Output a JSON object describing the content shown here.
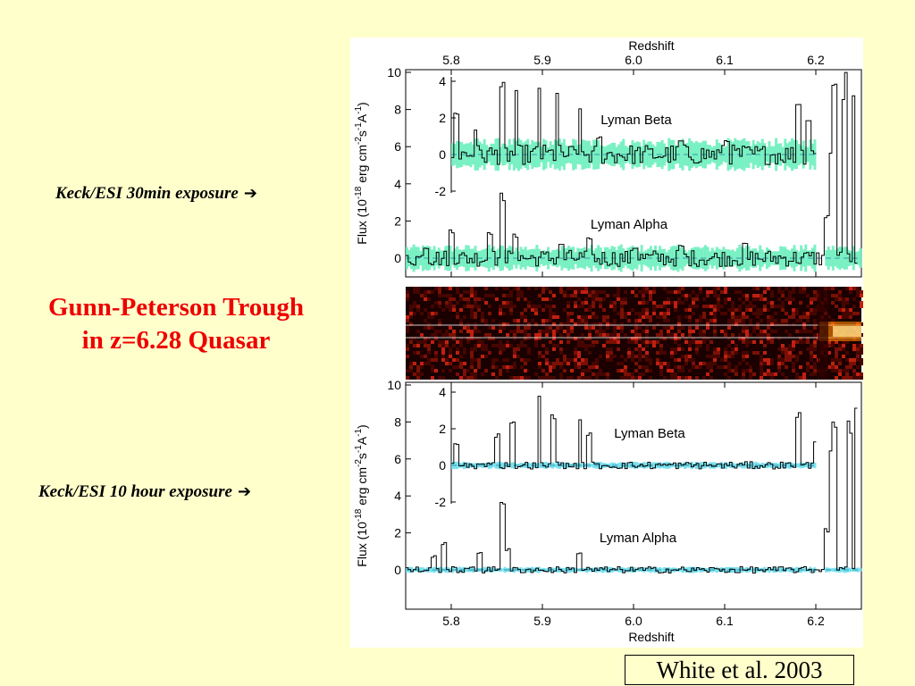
{
  "annotations": {
    "top_label": "Keck/ESI 30min exposure",
    "bottom_label": "Keck/ESI 10 hour exposure",
    "arrow": "➔",
    "title_line1": "Gunn-Peterson Trough",
    "title_line2": "in z=6.28 Quasar",
    "citation": "White et al. 2003"
  },
  "chart_data": [
    {
      "type": "line",
      "panel": "top",
      "title": "",
      "xlabel": "Redshift",
      "ylabel": "Flux (10^-18 erg cm^-2 s^-1 A^-1)",
      "xlim": [
        5.75,
        6.25
      ],
      "ylim": [
        -1,
        10
      ],
      "xticks": [
        5.8,
        5.9,
        6.0,
        6.1,
        6.2
      ],
      "yticks": [
        0,
        2,
        4,
        6,
        8,
        10
      ],
      "inset": {
        "label": "Lyman Beta",
        "yticks": [
          -2,
          0,
          2,
          4
        ],
        "xlim": [
          5.8,
          6.2
        ]
      },
      "series_labels": [
        "Lyman Beta",
        "Lyman Alpha"
      ],
      "noise_color": "#66eebb",
      "lyman_alpha_spikes": [
        [
          5.77,
          0.6
        ],
        [
          5.8,
          1.6
        ],
        [
          5.84,
          1.5
        ],
        [
          5.855,
          3.6
        ],
        [
          5.87,
          1.3
        ],
        [
          5.92,
          0.8
        ],
        [
          5.95,
          1.1
        ],
        [
          6.0,
          0.6
        ],
        [
          6.05,
          0.7
        ],
        [
          6.12,
          0.8
        ],
        [
          6.21,
          2.5
        ],
        [
          6.215,
          6.0
        ],
        [
          6.22,
          9.5
        ],
        [
          6.23,
          10.0
        ],
        [
          6.24,
          10.0
        ]
      ],
      "lyman_beta_spikes": [
        [
          5.805,
          2.5
        ],
        [
          5.825,
          1.5
        ],
        [
          5.855,
          4.0
        ],
        [
          5.87,
          3.5
        ],
        [
          5.895,
          4.0
        ],
        [
          5.915,
          3.5
        ],
        [
          5.94,
          2.5
        ],
        [
          5.96,
          1.0
        ],
        [
          6.05,
          0.8
        ],
        [
          6.1,
          0.8
        ],
        [
          6.18,
          3.0
        ],
        [
          6.19,
          2.0
        ]
      ]
    },
    {
      "type": "heatmap",
      "panel": "middle",
      "description_colors": [
        "#200000",
        "#aa2200",
        "#ffcc66"
      ]
    },
    {
      "type": "line",
      "panel": "bottom",
      "title": "",
      "xlabel": "Redshift",
      "ylabel": "Flux (10^-18 erg cm^-2 s^-1 A^-1)",
      "xlim": [
        5.75,
        6.25
      ],
      "ylim": [
        -1,
        10
      ],
      "xticks": [
        5.8,
        5.9,
        6.0,
        6.1,
        6.2
      ],
      "yticks": [
        0,
        2,
        4,
        6,
        8,
        10
      ],
      "inset": {
        "label": "Lyman Beta",
        "yticks": [
          -2,
          0,
          2,
          4
        ],
        "xlim": [
          5.8,
          6.2
        ]
      },
      "series_labels": [
        "Lyman Beta",
        "Lyman Alpha"
      ],
      "noise_color": "#66ddee",
      "lyman_alpha_spikes": [
        [
          5.78,
          0.8
        ],
        [
          5.79,
          1.6
        ],
        [
          5.83,
          1.0
        ],
        [
          5.855,
          4.1
        ],
        [
          5.86,
          1.2
        ],
        [
          5.94,
          1.0
        ],
        [
          6.21,
          2.3
        ],
        [
          6.215,
          6.5
        ],
        [
          6.22,
          9.0
        ],
        [
          6.235,
          8.5
        ],
        [
          6.245,
          10.0
        ]
      ],
      "lyman_beta_spikes": [
        [
          5.805,
          1.2
        ],
        [
          5.85,
          1.8
        ],
        [
          5.865,
          2.4
        ],
        [
          5.895,
          4.0
        ],
        [
          5.91,
          3.0
        ],
        [
          5.94,
          2.5
        ],
        [
          5.95,
          1.8
        ],
        [
          6.18,
          3.0
        ],
        [
          6.2,
          1.5
        ]
      ]
    }
  ],
  "axis_texts": {
    "top_xlabel": "Redshift",
    "bottom_xlabel": "Redshift",
    "tick_labels": [
      "5.8",
      "5.9",
      "6.0",
      "6.1",
      "6.2"
    ],
    "y_tick_labels": [
      "0",
      "2",
      "4",
      "6",
      "8",
      "10"
    ],
    "inset_tick_labels": [
      "-2",
      "0",
      "2",
      "4"
    ],
    "ylabel_main": "Flux (10",
    "ylabel_exp1": "-18",
    "ylabel_mid": " erg cm",
    "ylabel_exp2": "-2",
    "ylabel_s": "s",
    "ylabel_exp3": "-1",
    "ylabel_a": "A",
    "ylabel_exp4": "-1",
    "ylabel_end": ")",
    "label_beta": "Lyman Beta",
    "label_alpha": "Lyman Alpha"
  }
}
